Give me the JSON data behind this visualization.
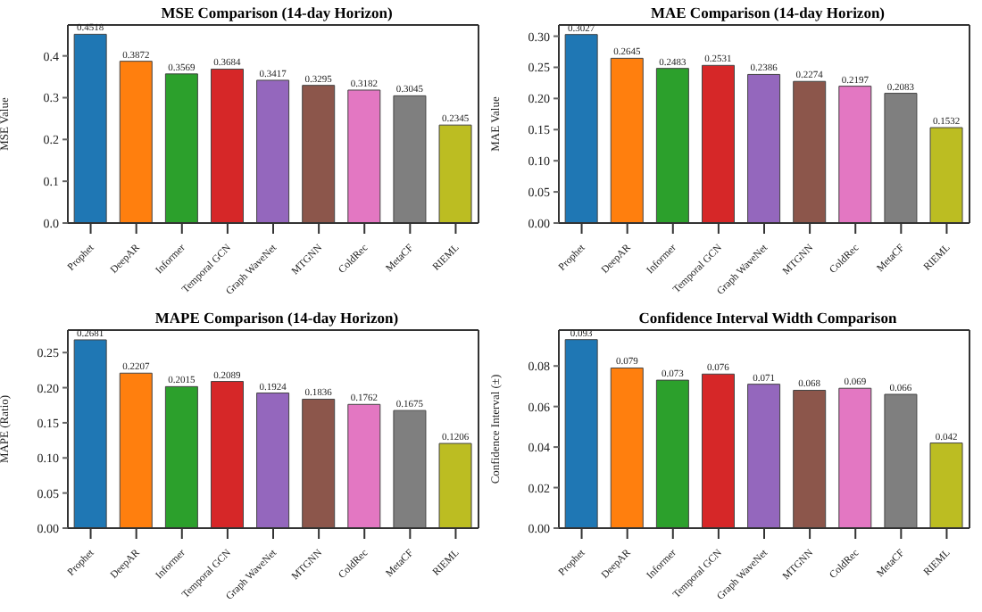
{
  "chart_data": [
    {
      "type": "bar",
      "title": "MSE Comparison (14-day Horizon)",
      "ylabel": "MSE Value",
      "categories": [
        "Prophet",
        "DeepAR",
        "Informer",
        "Temporal GCN",
        "Graph WaveNet",
        "MTGNN",
        "ColdRec",
        "MetaCF",
        "RIEML"
      ],
      "values": [
        0.4518,
        0.3872,
        0.3569,
        0.3684,
        0.3417,
        0.3295,
        0.3182,
        0.3045,
        0.2345
      ],
      "colors": [
        "#1f77b4",
        "#ff7f0e",
        "#2ca02c",
        "#d62728",
        "#9467bd",
        "#8c564b",
        "#e377c2",
        "#7f7f7f",
        "#bcbd22"
      ],
      "ylim": [
        0,
        0.474
      ],
      "yticks": [
        {
          "value": 0,
          "label": "0.0"
        },
        {
          "value": 0.1,
          "label": "0.1"
        },
        {
          "value": 0.2,
          "label": "0.2"
        },
        {
          "value": 0.3,
          "label": "0.3"
        },
        {
          "value": 0.4,
          "label": "0.4"
        }
      ],
      "data_labels": true,
      "grid": false,
      "legend": false
    },
    {
      "type": "bar",
      "title": "MAE Comparison (14-day Horizon)",
      "ylabel": "MAE Value",
      "categories": [
        "Prophet",
        "DeepAR",
        "Informer",
        "Temporal GCN",
        "Graph WaveNet",
        "MTGNN",
        "ColdRec",
        "MetaCF",
        "RIEML"
      ],
      "values": [
        0.3027,
        0.2645,
        0.2483,
        0.2531,
        0.2386,
        0.2274,
        0.2197,
        0.2083,
        0.1532
      ],
      "colors": [
        "#1f77b4",
        "#ff7f0e",
        "#2ca02c",
        "#d62728",
        "#9467bd",
        "#8c564b",
        "#e377c2",
        "#7f7f7f",
        "#bcbd22"
      ],
      "ylim": [
        0,
        0.318
      ],
      "yticks": [
        {
          "value": 0,
          "label": "0.00"
        },
        {
          "value": 0.05,
          "label": "0.05"
        },
        {
          "value": 0.1,
          "label": "0.10"
        },
        {
          "value": 0.15,
          "label": "0.15"
        },
        {
          "value": 0.2,
          "label": "0.20"
        },
        {
          "value": 0.25,
          "label": "0.25"
        },
        {
          "value": 0.3,
          "label": "0.30"
        }
      ],
      "data_labels": true,
      "grid": false,
      "legend": false
    },
    {
      "type": "bar",
      "title": "MAPE Comparison (14-day Horizon)",
      "ylabel": "MAPE (Ratio)",
      "categories": [
        "Prophet",
        "DeepAR",
        "Informer",
        "Temporal GCN",
        "Graph WaveNet",
        "MTGNN",
        "ColdRec",
        "MetaCF",
        "RIEML"
      ],
      "values": [
        0.2681,
        0.2207,
        0.2015,
        0.2089,
        0.1924,
        0.1836,
        0.1762,
        0.1675,
        0.1206
      ],
      "colors": [
        "#1f77b4",
        "#ff7f0e",
        "#2ca02c",
        "#d62728",
        "#9467bd",
        "#8c564b",
        "#e377c2",
        "#7f7f7f",
        "#bcbd22"
      ],
      "ylim": [
        0,
        0.282
      ],
      "yticks": [
        {
          "value": 0,
          "label": "0.00"
        },
        {
          "value": 0.05,
          "label": "0.05"
        },
        {
          "value": 0.1,
          "label": "0.10"
        },
        {
          "value": 0.15,
          "label": "0.15"
        },
        {
          "value": 0.2,
          "label": "0.20"
        },
        {
          "value": 0.25,
          "label": "0.25"
        }
      ],
      "data_labels": true,
      "grid": false,
      "legend": false
    },
    {
      "type": "bar",
      "title": "Confidence Interval Width Comparison",
      "ylabel": "Confidence Interval (±)",
      "categories": [
        "Prophet",
        "DeepAR",
        "Informer",
        "Temporal GCN",
        "Graph WaveNet",
        "MTGNN",
        "ColdRec",
        "MetaCF",
        "RIEML"
      ],
      "values": [
        0.093,
        0.079,
        0.073,
        0.076,
        0.071,
        0.068,
        0.069,
        0.066,
        0.042
      ],
      "colors": [
        "#1f77b4",
        "#ff7f0e",
        "#2ca02c",
        "#d62728",
        "#9467bd",
        "#8c564b",
        "#e377c2",
        "#7f7f7f",
        "#bcbd22"
      ],
      "ylim": [
        0,
        0.0977
      ],
      "yticks": [
        {
          "value": 0,
          "label": "0.00"
        },
        {
          "value": 0.02,
          "label": "0.02"
        },
        {
          "value": 0.04,
          "label": "0.04"
        },
        {
          "value": 0.06,
          "label": "0.06"
        },
        {
          "value": 0.08,
          "label": "0.08"
        }
      ],
      "data_labels": true,
      "grid": false,
      "legend": false
    }
  ]
}
